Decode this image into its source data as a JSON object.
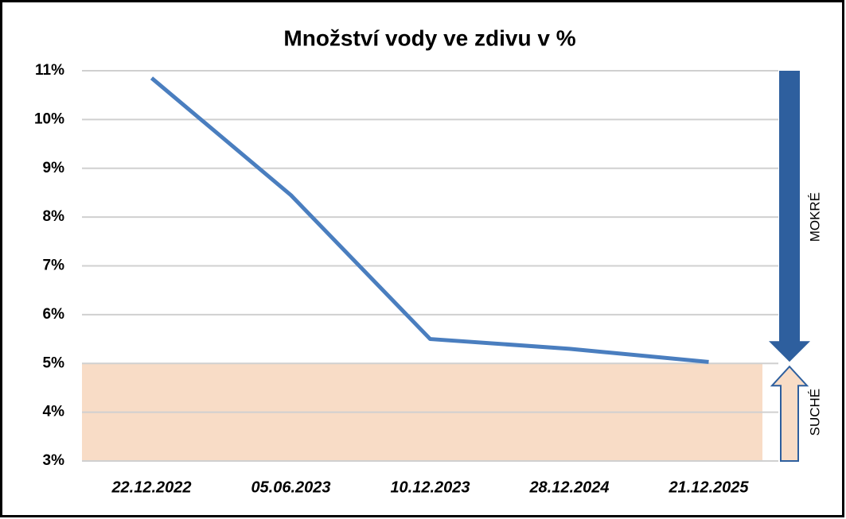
{
  "chart_data": {
    "type": "line",
    "title": "Množství vody ve zdivu v %",
    "categories": [
      "22.12.2022",
      "05.06.2023",
      "10.12.2023",
      "28.12.2024",
      "21.12.2025"
    ],
    "values": [
      10.85,
      8.45,
      5.5,
      5.3,
      5.03
    ],
    "color": "#4a7ebf",
    "ylim": [
      3,
      11
    ],
    "yticks": [
      {
        "value": 3,
        "label": "3%"
      },
      {
        "value": 4,
        "label": "4%"
      },
      {
        "value": 5,
        "label": "5%"
      },
      {
        "value": 6,
        "label": "6%"
      },
      {
        "value": 7,
        "label": "7%"
      },
      {
        "value": 8,
        "label": "8%"
      },
      {
        "value": 9,
        "label": "9%"
      },
      {
        "value": 10,
        "label": "10%"
      },
      {
        "value": 11,
        "label": "11%"
      }
    ],
    "grid": true,
    "zones": [
      {
        "label": "MOKRÉ",
        "from": 5,
        "to": 11,
        "color": "#2e5f9e"
      },
      {
        "label": "SUCHÉ",
        "from": 3,
        "to": 5,
        "color": "#f8dcc6"
      }
    ]
  }
}
